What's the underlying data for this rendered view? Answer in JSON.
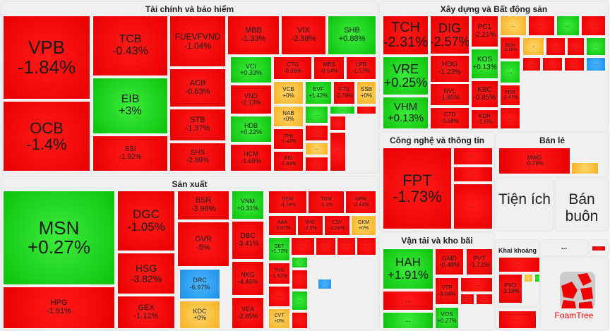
{
  "colors": {
    "red": "#ee0000",
    "green": "#1ad41a",
    "yellow": "#fcc440",
    "blue": "#2a9ff0"
  },
  "panels": {
    "finance": "Tài chính và bảo hiểm",
    "realestate": "Xây dựng và Bất động sản",
    "tech": "Công nghệ và thông tin",
    "retail": "Bán lẻ",
    "utilities": "Tiện ích",
    "wholesale": "Bán buôn",
    "manufacturing": "Sản xuất",
    "transport": "Vận tải và kho bãi",
    "mining": "Khai khoáng",
    "other": "...",
    "logo_text": "FoamTree"
  },
  "tiles": [
    {
      "t": "VPB",
      "c": "-1.84%",
      "k": "red"
    },
    {
      "t": "OCB",
      "c": "-1.4%",
      "k": "red"
    },
    {
      "t": "TCB",
      "c": "-0.43%",
      "k": "red"
    },
    {
      "t": "EIB",
      "c": "+3%",
      "k": "green"
    },
    {
      "t": "SSI",
      "c": "-1.92%",
      "k": "red"
    },
    {
      "t": "FUEVFVND",
      "c": "-1.04%",
      "k": "red"
    },
    {
      "t": "ACB",
      "c": "-0.63%",
      "k": "red"
    },
    {
      "t": "STB",
      "c": "-1.37%",
      "k": "red"
    },
    {
      "t": "SHS",
      "c": "-2.89%",
      "k": "red"
    },
    {
      "t": "MBB",
      "c": "-1.33%",
      "k": "red"
    },
    {
      "t": "VIX",
      "c": "-2.38%",
      "k": "red"
    },
    {
      "t": "SHB",
      "c": "+0.88%",
      "k": "green"
    },
    {
      "t": "VCI",
      "c": "+0.33%",
      "k": "green"
    },
    {
      "t": "VND",
      "c": "-2.13%",
      "k": "red"
    },
    {
      "t": "HDB",
      "c": "+0.22%",
      "k": "green"
    },
    {
      "t": "HCM",
      "c": "-1.69%",
      "k": "red"
    },
    {
      "t": "CTG",
      "c": "-0.96%",
      "k": "red"
    },
    {
      "t": "MBS",
      "c": "-0.64%",
      "k": "red"
    },
    {
      "t": "LPB",
      "c": "-1.57%",
      "k": "red"
    },
    {
      "t": "VCB",
      "c": "+0%",
      "k": "yellow"
    },
    {
      "t": "EVF",
      "c": "+1.42%",
      "k": "green"
    },
    {
      "t": "FTS",
      "c": "-2.76%",
      "k": "red"
    },
    {
      "t": "SSB",
      "c": "+0%",
      "k": "yellow"
    },
    {
      "t": "NAB",
      "c": "+0%",
      "k": "yellow"
    },
    {
      "t": "TPB",
      "c": "-1.43%",
      "k": "red"
    },
    {
      "t": "BID",
      "c": "-1.93%",
      "k": "red"
    },
    {
      "t": "...",
      "c": "",
      "k": "green"
    },
    {
      "t": "...",
      "c": "",
      "k": "green"
    },
    {
      "t": "...",
      "c": "",
      "k": "red"
    },
    {
      "t": "...",
      "c": "",
      "k": "red"
    },
    {
      "t": "...",
      "c": "",
      "k": "yellow"
    },
    {
      "t": "...",
      "c": "",
      "k": "red"
    },
    {
      "t": "...",
      "c": "",
      "k": "red"
    },
    {
      "t": "...",
      "c": "",
      "k": "red"
    },
    {
      "t": "TCH",
      "c": "-2.31%",
      "k": "red"
    },
    {
      "t": "VRE",
      "c": "+0.25%",
      "k": "green"
    },
    {
      "t": "VHM",
      "c": "+0.13%",
      "k": "green"
    },
    {
      "t": "DIG",
      "c": "-2.57%",
      "k": "red"
    },
    {
      "t": "HDG",
      "c": "-1.23%",
      "k": "red"
    },
    {
      "t": "NVL",
      "c": "-1.85%",
      "k": "red"
    },
    {
      "t": "CTD",
      "c": "-3.58%",
      "k": "red"
    },
    {
      "t": "PC1",
      "c": "-2.21%",
      "k": "red"
    },
    {
      "t": "KOS",
      "c": "+0.13%",
      "k": "green"
    },
    {
      "t": "KBC",
      "c": "-0.85%",
      "k": "red"
    },
    {
      "t": "KDH",
      "c": "-1.6%",
      "k": "red"
    },
    {
      "t": "BCM",
      "c": "-2.16%",
      "k": "red"
    },
    {
      "t": "...",
      "c": "",
      "k": "green"
    },
    {
      "t": "PDR",
      "c": "-2.47%",
      "k": "red"
    },
    {
      "t": "...",
      "c": "",
      "k": "red"
    },
    {
      "t": "...",
      "c": "",
      "k": "yellow"
    },
    {
      "t": "...",
      "c": "",
      "k": "red"
    },
    {
      "t": "...",
      "c": "",
      "k": "green"
    },
    {
      "t": "...",
      "c": "",
      "k": "red"
    },
    {
      "t": "...",
      "c": "",
      "k": "yellow"
    },
    {
      "t": "...",
      "c": "",
      "k": "red"
    },
    {
      "t": "...",
      "c": "",
      "k": "red"
    },
    {
      "t": "...",
      "c": "",
      "k": "green"
    },
    {
      "t": "...",
      "c": "",
      "k": "red"
    },
    {
      "t": "...",
      "c": "",
      "k": "red"
    },
    {
      "t": "...",
      "c": "",
      "k": "red"
    },
    {
      "t": "...",
      "c": "",
      "k": "blue"
    },
    {
      "t": "FPT",
      "c": "-1.73%",
      "k": "red"
    },
    {
      "t": "...",
      "c": "",
      "k": "red"
    },
    {
      "t": "...",
      "c": "",
      "k": "red"
    },
    {
      "t": "...",
      "c": "",
      "k": "red"
    },
    {
      "t": "MWG",
      "c": "-0.79%",
      "k": "red"
    },
    {
      "t": "",
      "c": "",
      "k": "yellow"
    },
    {
      "t": "MSN",
      "c": "+0.27%",
      "k": "green"
    },
    {
      "t": "HPG",
      "c": "-1.91%",
      "k": "red"
    },
    {
      "t": "DGC",
      "c": "-1.05%",
      "k": "red"
    },
    {
      "t": "HSG",
      "c": "-3.82%",
      "k": "red"
    },
    {
      "t": "GEX",
      "c": "-1.12%",
      "k": "red"
    },
    {
      "t": "BSR",
      "c": "-3.98%",
      "k": "red"
    },
    {
      "t": "GVR",
      "c": "-5%",
      "k": "red"
    },
    {
      "t": "DRC",
      "c": "-6.97%",
      "k": "blue"
    },
    {
      "t": "KDC",
      "c": "+0%",
      "k": "yellow"
    },
    {
      "t": "VNM",
      "c": "+0.31%",
      "k": "green"
    },
    {
      "t": "DBC",
      "c": "-3.41%",
      "k": "red"
    },
    {
      "t": "NKG",
      "c": "-4.46%",
      "k": "red"
    },
    {
      "t": "VEA",
      "c": "-2.85%",
      "k": "red"
    },
    {
      "t": "DCM",
      "c": "-3.74%",
      "k": "red"
    },
    {
      "t": "TCM",
      "c": "-1.1%",
      "k": "red"
    },
    {
      "t": "DPM",
      "c": "-2.43%",
      "k": "red"
    },
    {
      "t": "AAA",
      "c": "-3.07%",
      "k": "red"
    },
    {
      "t": "VHC",
      "c": "-2.5%",
      "k": "red"
    },
    {
      "t": "CSV",
      "c": "-2.54%",
      "k": "red"
    },
    {
      "t": "GKM",
      "c": "+0%",
      "k": "yellow"
    },
    {
      "t": "SBT",
      "c": "+1.72%",
      "k": "green"
    },
    {
      "t": "TNG",
      "c": "-1.52%",
      "k": "red"
    },
    {
      "t": "...",
      "c": "",
      "k": "red"
    },
    {
      "t": "CVT",
      "c": "+0%",
      "k": "yellow"
    },
    {
      "t": "...",
      "c": "",
      "k": "red"
    },
    {
      "t": "...",
      "c": "",
      "k": "red"
    },
    {
      "t": "...",
      "c": "",
      "k": "red"
    },
    {
      "t": "...",
      "c": "",
      "k": "red"
    },
    {
      "t": "...",
      "c": "",
      "k": "green"
    },
    {
      "t": "...",
      "c": "",
      "k": "red"
    },
    {
      "t": "...",
      "c": "",
      "k": "green"
    },
    {
      "t": "...",
      "c": "",
      "k": "blue"
    },
    {
      "t": "...",
      "c": "",
      "k": "red"
    },
    {
      "t": "HAH",
      "c": "+1.91%",
      "k": "green"
    },
    {
      "t": "...",
      "c": "",
      "k": "red"
    },
    {
      "t": "...",
      "c": "",
      "k": "green"
    },
    {
      "t": "GMD",
      "c": "-0.48%",
      "k": "red"
    },
    {
      "t": "PVT",
      "c": "-1.72%",
      "k": "red"
    },
    {
      "t": "VTP",
      "c": "-3.04%",
      "k": "red"
    },
    {
      "t": "VOS",
      "c": "+0.27%",
      "k": "green"
    },
    {
      "t": "...",
      "c": "",
      "k": "red"
    },
    {
      "t": "...",
      "c": "",
      "k": "red"
    },
    {
      "t": "...",
      "c": "",
      "k": "red"
    },
    {
      "t": "PVD",
      "c": "-3.19%",
      "k": "red"
    },
    {
      "t": "...",
      "c": "",
      "k": "red"
    },
    {
      "t": "",
      "c": "",
      "k": "yellow"
    },
    {
      "t": "",
      "c": "",
      "k": "green"
    },
    {
      "t": "...",
      "c": "",
      "k": "red"
    },
    {
      "t": "",
      "c": "",
      "k": "red"
    }
  ]
}
